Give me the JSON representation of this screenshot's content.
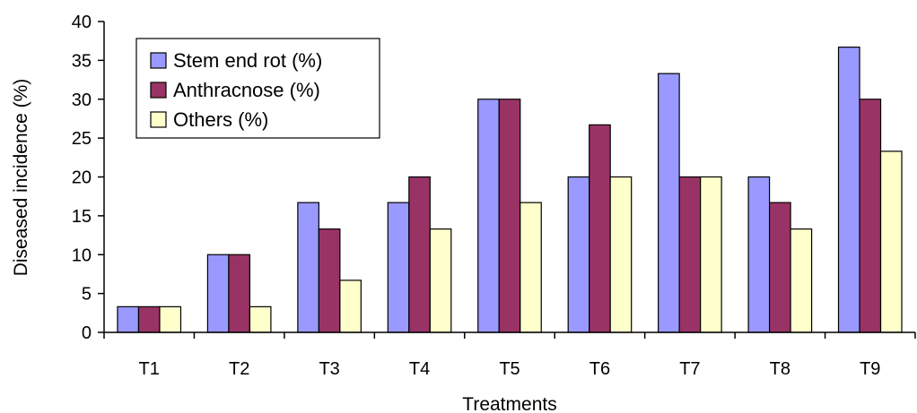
{
  "chart_data": {
    "type": "bar",
    "title": "",
    "xlabel": "Treatments",
    "ylabel": "Diseased incidence (%)",
    "ylim": [
      0,
      40
    ],
    "yticks": [
      0,
      5,
      10,
      15,
      20,
      25,
      30,
      35,
      40
    ],
    "grid": false,
    "legend_position": "top-left",
    "categories": [
      "T1",
      "T2",
      "T3",
      "T4",
      "T5",
      "T6",
      "T7",
      "T8",
      "T9"
    ],
    "series": [
      {
        "name": "Stem end rot (%)",
        "color": "#9999ff",
        "values": [
          3.3,
          10,
          16.7,
          16.7,
          30,
          20,
          33.3,
          20,
          36.7
        ]
      },
      {
        "name": "Anthracnose (%)",
        "color": "#993366",
        "values": [
          3.3,
          10,
          13.3,
          20,
          30,
          26.7,
          20,
          16.7,
          30
        ]
      },
      {
        "name": "Others (%)",
        "color": "#ffffcc",
        "values": [
          3.3,
          3.3,
          6.7,
          13.3,
          16.7,
          20,
          20,
          13.3,
          23.3
        ]
      }
    ]
  }
}
